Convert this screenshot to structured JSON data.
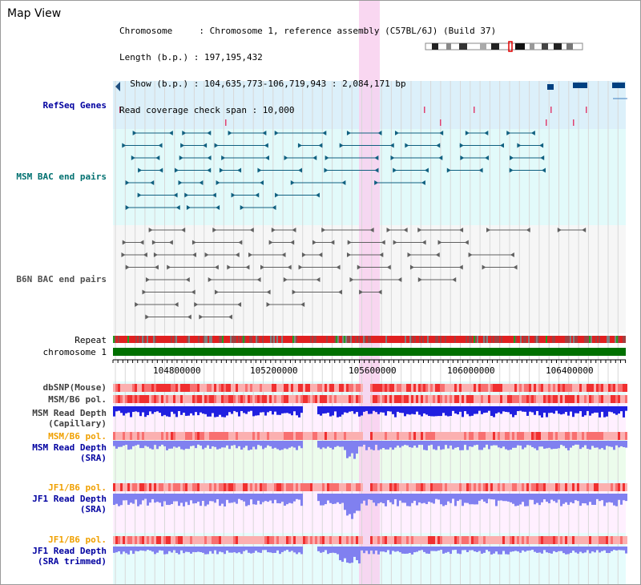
{
  "header": {
    "title": "Map View",
    "info_lines": [
      "Chromosome     : Chromosome 1, reference assembly (C57BL/6J) (Build 37)",
      "Length (b.p.) : 197,195,432",
      "  Show (b.p.) : 104,635,773-106,719,943 : 2,084,171 bp",
      "Read coverage check span : 10,000"
    ]
  },
  "tracks": {
    "refseq": "RefSeq Genes",
    "msm_bac": "MSM BAC end pairs",
    "b6n_bac": "B6N BAC end pairs",
    "repeat": "Repeat",
    "chromosome": "chromosome 1",
    "dbsnp": "dbSNP(Mouse)",
    "msm_b6_pol": "MSM/B6 pol.",
    "msm_read_depth_cap": "MSM Read Depth\n(Capillary)",
    "msm_b6_pol_2": "MSM/B6 pol.",
    "msm_read_depth_sra": "MSM Read Depth\n(SRA)",
    "jf1_b6_pol": "JF1/B6 pol.",
    "jf1_read_depth_sra": "JF1 Read Depth\n(SRA)",
    "jf1_b6_pol_2": "JF1/B6 pol.",
    "jf1_read_depth_trim": "JF1 Read Depth\n(SRA trimmed)"
  },
  "axis": {
    "ticks": [
      "104800000",
      "105200000",
      "105600000",
      "106000000",
      "106400000"
    ]
  },
  "colors": {
    "refseq_bg": "#dcf0fa",
    "msm_bg": "#e2fafa",
    "b6n_bg": "#f4f4f4",
    "highlight": "#f8d8f0",
    "chromosome_bar": "#007000",
    "label_blue": "#0000a0",
    "label_teal": "#007070",
    "label_orange": "#f0a000",
    "depth_dark": "#2020e0",
    "depth_light": "#8080f0"
  }
}
